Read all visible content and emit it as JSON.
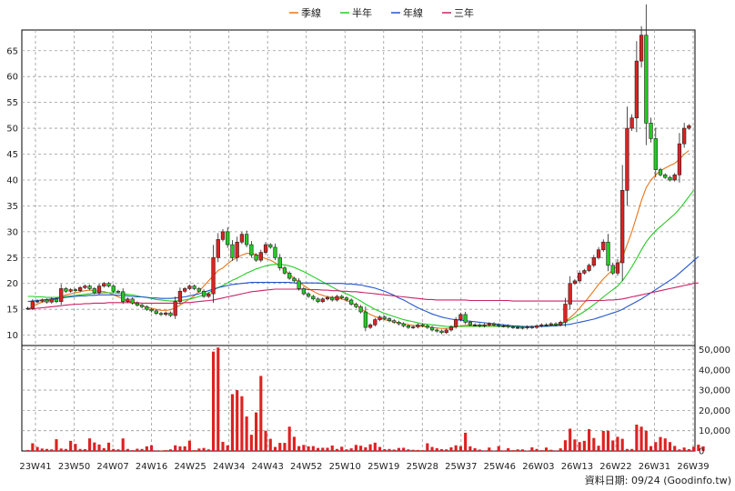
{
  "chart_data": {
    "type": "candlestick",
    "legend": [
      {
        "label": "季線",
        "color": "#e8751a"
      },
      {
        "label": "半年",
        "color": "#22cc22"
      },
      {
        "label": "年線",
        "color": "#2255cc"
      },
      {
        "label": "三年",
        "color": "#cc2266"
      }
    ],
    "price_axis": {
      "ylim": [
        8,
        69
      ],
      "ticks": [
        10,
        15,
        20,
        25,
        30,
        35,
        40,
        45,
        50,
        55,
        60,
        65
      ]
    },
    "volume_axis": {
      "ylim": [
        0,
        52000
      ],
      "ticks": [
        "0",
        "10,000",
        "20,000",
        "30,000",
        "40,000",
        "50,000"
      ],
      "tick_values": [
        0,
        10000,
        20000,
        30000,
        40000,
        50000
      ]
    },
    "x_tick_labels": [
      "23W41",
      "23W50",
      "24W07",
      "24W16",
      "24W25",
      "24W34",
      "24W43",
      "24W52",
      "25W10",
      "25W19",
      "25W28",
      "25W37",
      "25W46",
      "26W03",
      "26W13",
      "26W22",
      "26W31",
      "26W39"
    ],
    "footer": "資料日期: 09/24  (Goodinfo.tw)",
    "candle_colors": {
      "up": "#dd2222",
      "down": "#22cc22",
      "neutral": "#222222"
    },
    "closes": [
      15.2,
      16.5,
      16.6,
      16.8,
      16.4,
      17.0,
      16.5,
      19.0,
      18.5,
      18.8,
      18.6,
      19.2,
      19.5,
      19.0,
      18.2,
      19.5,
      20.0,
      19.5,
      18.5,
      18.4,
      16.5,
      17.0,
      16.2,
      15.8,
      15.5,
      15.0,
      14.7,
      14.2,
      14.0,
      14.3,
      13.8,
      16.5,
      18.5,
      19.0,
      19.5,
      19.0,
      18.5,
      17.5,
      18.0,
      25.0,
      28.5,
      30.0,
      27.5,
      25.0,
      28.0,
      29.5,
      27.5,
      25.5,
      24.5,
      26.0,
      27.5,
      27.0,
      25.0,
      23.0,
      22.0,
      21.0,
      20.5,
      19.0,
      18.0,
      17.5,
      17.0,
      16.5,
      17.0,
      17.3,
      16.8,
      17.5,
      17.2,
      16.8,
      16.0,
      15.5,
      14.5,
      11.5,
      12.0,
      13.0,
      13.5,
      13.2,
      12.8,
      12.5,
      12.2,
      11.8,
      11.5,
      11.6,
      12.0,
      11.8,
      11.5,
      11.0,
      10.8,
      10.5,
      11.0,
      11.6,
      13.0,
      14.0,
      12.5,
      12.0,
      12.0,
      11.8,
      12.0,
      12.2,
      12.0,
      11.8,
      11.8,
      11.6,
      11.5,
      11.5,
      11.4,
      11.6,
      11.5,
      11.8,
      12.0,
      12.0,
      12.2,
      12.0,
      12.5,
      16.0,
      20.0,
      20.5,
      22.0,
      22.5,
      23.5,
      25.0,
      26.5,
      28.0,
      23.5,
      22.0,
      24.0,
      38.0,
      50.0,
      52.0,
      63.0,
      68.0,
      51.0,
      48.0,
      42.0,
      41.0,
      40.5,
      40.0,
      41.0,
      47.0,
      50.0,
      50.5
    ],
    "moving_averages": [
      {
        "label": "季線",
        "values": [
          15.0,
          15.5,
          16.0,
          16.4,
          16.6,
          16.8,
          17.0,
          17.4,
          17.8,
          18.0,
          18.2,
          18.4,
          18.6,
          18.7,
          18.6,
          18.5,
          18.4,
          18.2,
          17.8,
          17.4,
          17.0,
          16.6,
          16.3,
          16.0,
          15.7,
          15.4,
          15.2,
          15.0,
          14.8,
          14.8,
          14.9,
          15.3,
          15.8,
          16.4,
          17.0,
          17.6,
          18.5,
          19.5,
          20.5,
          21.5,
          22.5,
          23.0,
          23.8,
          24.5,
          25.0,
          25.5,
          25.8,
          25.8,
          25.6,
          25.2,
          24.8,
          24.5,
          24.0,
          23.3,
          22.6,
          21.8,
          21.0,
          20.3,
          19.6,
          19.0,
          18.5,
          18.0,
          17.7,
          17.4,
          17.3,
          17.2,
          17.0,
          16.7,
          16.3,
          15.8,
          15.2,
          14.5,
          14.0,
          13.6,
          13.3,
          13.0,
          12.8,
          12.6,
          12.4,
          12.2,
          12.0,
          11.9,
          11.8,
          11.7,
          11.6,
          11.5,
          11.4,
          11.3,
          11.3,
          11.4,
          11.6,
          11.8,
          11.9,
          11.9,
          11.9,
          11.9,
          11.9,
          11.9,
          11.9,
          11.8,
          11.8,
          11.8,
          11.7,
          11.7,
          11.6,
          11.6,
          11.6,
          11.6,
          11.7,
          11.7,
          11.8,
          11.8,
          12.0,
          12.6,
          13.4,
          14.2,
          15.2,
          16.3,
          17.4,
          18.6,
          19.8,
          20.9,
          21.8,
          22.6,
          23.4,
          25.0,
          27.5,
          30.0,
          33.0,
          36.0,
          38.5,
          40.0,
          41.0,
          41.8,
          42.3,
          42.8,
          43.2,
          44.0,
          45.0,
          45.7
        ]
      },
      {
        "label": "半年",
        "values": [
          17.5,
          17.5,
          17.4,
          17.4,
          17.3,
          17.3,
          17.3,
          17.4,
          17.5,
          17.6,
          17.7,
          17.8,
          17.9,
          18.0,
          18.1,
          18.1,
          18.2,
          18.2,
          18.2,
          18.1,
          18.0,
          17.9,
          17.8,
          17.6,
          17.4,
          17.3,
          17.1,
          16.9,
          16.8,
          16.7,
          16.6,
          16.6,
          16.7,
          16.8,
          17.0,
          17.2,
          17.5,
          17.8,
          18.2,
          18.7,
          19.2,
          19.6,
          20.1,
          20.6,
          21.0,
          21.5,
          22.0,
          22.4,
          22.8,
          23.1,
          23.4,
          23.6,
          23.7,
          23.7,
          23.6,
          23.4,
          23.1,
          22.7,
          22.3,
          21.8,
          21.3,
          20.8,
          20.3,
          19.8,
          19.3,
          18.8,
          18.4,
          18.0,
          17.6,
          17.1,
          16.6,
          16.0,
          15.5,
          15.0,
          14.6,
          14.2,
          13.9,
          13.6,
          13.3,
          13.0,
          12.8,
          12.6,
          12.4,
          12.2,
          12.1,
          12.0,
          11.9,
          11.8,
          11.7,
          11.7,
          11.7,
          11.7,
          11.7,
          11.7,
          11.7,
          11.7,
          11.7,
          11.7,
          11.7,
          11.7,
          11.7,
          11.7,
          11.7,
          11.6,
          11.6,
          11.6,
          11.6,
          11.7,
          11.7,
          11.8,
          11.9,
          12.0,
          12.2,
          12.6,
          13.0,
          13.5,
          14.0,
          14.6,
          15.2,
          15.9,
          16.6,
          17.4,
          18.1,
          18.8,
          19.5,
          20.5,
          21.8,
          23.2,
          24.8,
          26.5,
          28.0,
          29.2,
          30.2,
          31.0,
          31.8,
          32.6,
          33.4,
          34.4,
          35.6,
          36.8,
          38.0
        ]
      },
      {
        "label": "年線",
        "values": [
          16.5,
          16.6,
          16.7,
          16.8,
          16.9,
          17.0,
          17.1,
          17.2,
          17.3,
          17.4,
          17.5,
          17.6,
          17.6,
          17.7,
          17.7,
          17.8,
          17.8,
          17.8,
          17.8,
          17.7,
          17.7,
          17.6,
          17.5,
          17.4,
          17.4,
          17.3,
          17.2,
          17.2,
          17.1,
          17.1,
          17.1,
          17.2,
          17.3,
          17.4,
          17.6,
          17.8,
          18.0,
          18.3,
          18.6,
          18.9,
          19.2,
          19.4,
          19.6,
          19.8,
          19.9,
          20.0,
          20.1,
          20.2,
          20.2,
          20.2,
          20.2,
          20.2,
          20.2,
          20.2,
          20.2,
          20.2,
          20.1,
          20.1,
          20.1,
          20.1,
          20.1,
          20.1,
          20.0,
          20.0,
          20.0,
          20.0,
          20.0,
          19.9,
          19.9,
          19.8,
          19.7,
          19.5,
          19.3,
          19.1,
          18.8,
          18.5,
          18.1,
          17.7,
          17.2,
          16.8,
          16.3,
          15.8,
          15.3,
          14.9,
          14.5,
          14.1,
          13.8,
          13.5,
          13.3,
          13.1,
          13.0,
          12.9,
          12.8,
          12.7,
          12.6,
          12.5,
          12.4,
          12.3,
          12.2,
          12.1,
          12.0,
          11.9,
          11.8,
          11.8,
          11.7,
          11.7,
          11.7,
          11.7,
          11.7,
          11.7,
          11.8,
          11.8,
          11.9,
          12.0,
          12.1,
          12.3,
          12.5,
          12.7,
          12.9,
          13.1,
          13.4,
          13.7,
          14.0,
          14.3,
          14.6,
          15.0,
          15.5,
          16.0,
          16.5,
          17.0,
          17.6,
          18.2,
          18.8,
          19.4,
          20.0,
          20.6,
          21.2,
          22.0,
          22.8,
          23.6,
          24.4,
          25.2
        ]
      },
      {
        "label": "三年",
        "values": [
          15.0,
          15.1,
          15.2,
          15.3,
          15.4,
          15.5,
          15.6,
          15.7,
          15.8,
          15.9,
          16.0,
          16.0,
          16.1,
          16.1,
          16.2,
          16.2,
          16.2,
          16.3,
          16.3,
          16.3,
          16.3,
          16.3,
          16.3,
          16.3,
          16.2,
          16.2,
          16.2,
          16.2,
          16.2,
          16.2,
          16.2,
          16.2,
          16.2,
          16.3,
          16.3,
          16.4,
          16.5,
          16.6,
          16.7,
          16.8,
          17.0,
          17.2,
          17.4,
          17.6,
          17.8,
          18.0,
          18.2,
          18.4,
          18.5,
          18.6,
          18.7,
          18.8,
          18.9,
          18.9,
          18.9,
          18.9,
          18.9,
          18.9,
          18.9,
          18.8,
          18.8,
          18.8,
          18.7,
          18.7,
          18.6,
          18.6,
          18.5,
          18.5,
          18.4,
          18.4,
          18.3,
          18.2,
          18.1,
          18.0,
          17.9,
          17.8,
          17.7,
          17.6,
          17.5,
          17.4,
          17.3,
          17.2,
          17.1,
          17.0,
          16.9,
          16.9,
          16.8,
          16.8,
          16.8,
          16.8,
          16.8,
          16.8,
          16.8,
          16.7,
          16.7,
          16.7,
          16.7,
          16.7,
          16.7,
          16.7,
          16.7,
          16.7,
          16.6,
          16.6,
          16.6,
          16.6,
          16.6,
          16.6,
          16.6,
          16.6,
          16.6,
          16.6,
          16.6,
          16.6,
          16.6,
          16.6,
          16.6,
          16.6,
          16.7,
          16.7,
          16.7,
          16.7,
          16.8,
          16.8,
          16.9,
          17.0,
          17.2,
          17.4,
          17.6,
          17.8,
          18.0,
          18.2,
          18.4,
          18.6,
          18.8,
          19.0,
          19.2,
          19.4,
          19.6,
          19.8,
          20.0,
          20.1
        ]
      }
    ],
    "volumes": [
      500,
      3800,
      2000,
      1200,
      1000,
      800,
      5800,
      1200,
      1000,
      5000,
      3500,
      1000,
      900,
      6200,
      4200,
      3200,
      1400,
      4100,
      1000,
      800,
      6200,
      1000,
      400,
      1100,
      1000,
      2300,
      2800,
      300,
      200,
      400,
      800,
      2800,
      2300,
      2300,
      5100,
      400,
      1200,
      1500,
      800,
      49000,
      51000,
      4500,
      2800,
      28000,
      30000,
      27000,
      17000,
      8000,
      19000,
      37000,
      10000,
      6000,
      2000,
      4000,
      4000,
      12000,
      7000,
      2400,
      3000,
      2300,
      2400,
      1500,
      1600,
      1600,
      2700,
      1000,
      2100,
      800,
      1300,
      3000,
      2600,
      1800,
      3300,
      4100,
      2000,
      900,
      1000,
      700,
      1500,
      1600,
      800,
      600,
      500,
      400,
      3800,
      2000,
      1400,
      900,
      800,
      1800,
      2800,
      2400,
      9000,
      2300,
      1400,
      700,
      300,
      1700,
      200,
      2400,
      300,
      1400,
      400,
      800,
      800,
      200,
      1800,
      1000,
      400,
      1700,
      600,
      300,
      1300,
      5300,
      11000,
      5700,
      4400,
      5000,
      10800,
      6400,
      2600,
      9900,
      10000,
      5200,
      7000,
      6000,
      1000,
      1000,
      13000,
      12000,
      10000,
      2400,
      4400,
      6900,
      6200,
      4400,
      2500,
      800,
      1700,
      900,
      2100,
      3100,
      2300
    ]
  }
}
